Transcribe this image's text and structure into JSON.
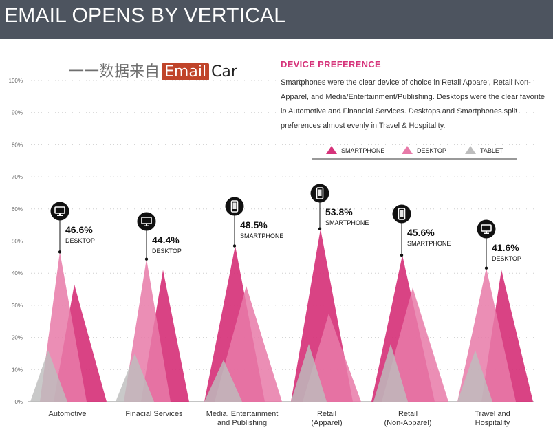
{
  "header": {
    "title": "EMAIL OPENS BY VERTICAL"
  },
  "watermark": {
    "prefix": "一一数据来自",
    "brand_highlight": "Email",
    "brand_rest": "Car"
  },
  "preference": {
    "title": "DEVICE PREFERENCE",
    "description": "Smartphones were the clear device of choice in Retail Apparel, Retail Non-Apparel, and Media/Entertainment/Publishing. Desktops were the clear favorite in Automotive and Financial Services. Desktops and Smartphones split preferences almost evenly in Travel & Hospitality."
  },
  "colors": {
    "smartphone": "#d6337a",
    "desktop": "#e77aa8",
    "tablet": "#bdbdbd",
    "header_bg": "#4d545f",
    "accent": "#d6337a"
  },
  "chart_data": {
    "type": "area",
    "title": "EMAIL OPENS BY VERTICAL",
    "ylim": [
      0,
      100
    ],
    "ytick_labels": [
      "0%",
      "10%",
      "20%",
      "30%",
      "40%",
      "50%",
      "60%",
      "70%",
      "80%",
      "90%",
      "100%"
    ],
    "legend": [
      "SMARTPHONE",
      "DESKTOP",
      "TABLET"
    ],
    "categories": [
      [
        "Automotive"
      ],
      [
        "Finacial Services"
      ],
      [
        "Media, Entertainment",
        "and Publishing"
      ],
      [
        "Retail",
        "(Apparel)"
      ],
      [
        "Retail",
        "(Non-Apparel)"
      ],
      [
        "Travel and",
        "Hospitality"
      ]
    ],
    "series": [
      {
        "name": "SMARTPHONE",
        "values": [
          36.5,
          41,
          48.5,
          53.8,
          45.6,
          41
        ]
      },
      {
        "name": "DESKTOP",
        "values": [
          46.6,
          44.4,
          36,
          27.5,
          35.5,
          41.6
        ]
      },
      {
        "name": "TABLET",
        "values": [
          16,
          15,
          13,
          18,
          18,
          16
        ]
      }
    ],
    "callouts": [
      {
        "value_label": "46.6%",
        "device_label": "DESKTOP",
        "icon": "desktop-icon",
        "value": 46.6
      },
      {
        "value_label": "44.4%",
        "device_label": "DESKTOP",
        "icon": "desktop-icon",
        "value": 44.4
      },
      {
        "value_label": "48.5%",
        "device_label": "SMARTPHONE",
        "icon": "smartphone-icon",
        "value": 48.5
      },
      {
        "value_label": "53.8%",
        "device_label": "SMARTPHONE",
        "icon": "smartphone-icon",
        "value": 53.8
      },
      {
        "value_label": "45.6%",
        "device_label": "SMARTPHONE",
        "icon": "smartphone-icon",
        "value": 45.6
      },
      {
        "value_label": "41.6%",
        "device_label": "DESKTOP",
        "icon": "desktop-icon",
        "value": 41.6
      }
    ]
  }
}
